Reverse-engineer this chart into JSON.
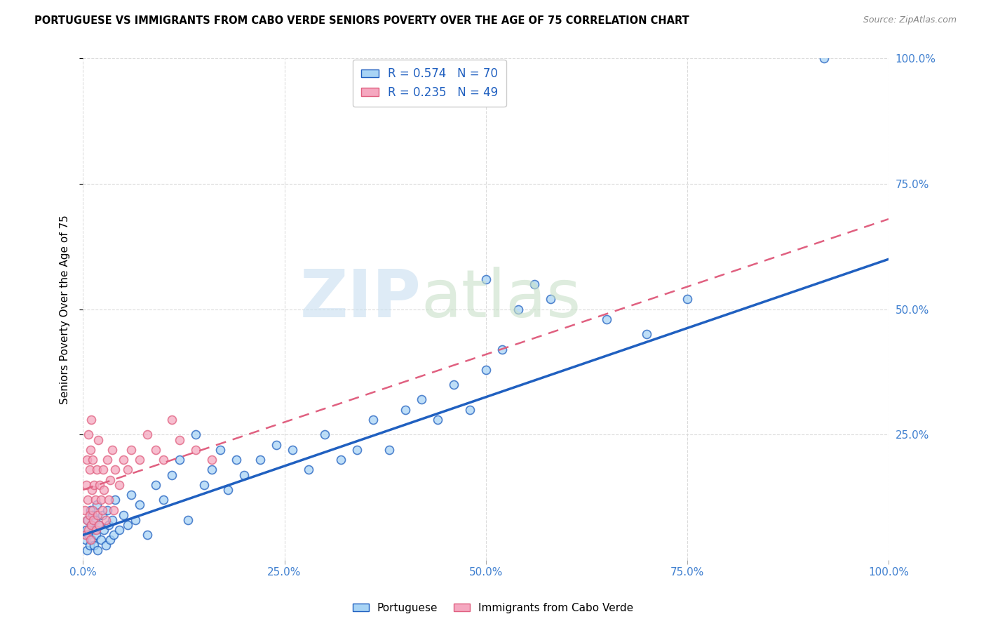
{
  "title": "PORTUGUESE VS IMMIGRANTS FROM CABO VERDE SENIORS POVERTY OVER THE AGE OF 75 CORRELATION CHART",
  "source": "Source: ZipAtlas.com",
  "ylabel": "Seniors Poverty Over the Age of 75",
  "xlim": [
    0,
    1.0
  ],
  "ylim": [
    0,
    1.0
  ],
  "xtick_labels": [
    "0.0%",
    "25.0%",
    "50.0%",
    "75.0%",
    "100.0%"
  ],
  "xtick_vals": [
    0,
    0.25,
    0.5,
    0.75,
    1.0
  ],
  "right_ytick_labels": [
    "25.0%",
    "50.0%",
    "75.0%",
    "100.0%"
  ],
  "right_ytick_vals": [
    0.25,
    0.5,
    0.75,
    1.0
  ],
  "portuguese_R": 0.574,
  "portuguese_N": 70,
  "cabo_verde_R": 0.235,
  "cabo_verde_N": 49,
  "portuguese_color": "#A8D4F5",
  "cabo_verde_color": "#F5A8C0",
  "portuguese_line_color": "#2060C0",
  "cabo_verde_line_color": "#E06080",
  "legend_text_color": "#2060C0",
  "axis_color": "#4080D0",
  "background_color": "#FFFFFF",
  "grid_color": "#D8D8D8",
  "blue_line_x0": 0.0,
  "blue_line_y0": 0.05,
  "blue_line_x1": 1.0,
  "blue_line_y1": 0.6,
  "pink_line_x0": 0.0,
  "pink_line_y0": 0.14,
  "pink_line_x1": 1.0,
  "pink_line_y1": 0.68,
  "portuguese_x": [
    0.003,
    0.004,
    0.005,
    0.006,
    0.007,
    0.008,
    0.009,
    0.01,
    0.011,
    0.012,
    0.013,
    0.014,
    0.015,
    0.016,
    0.017,
    0.018,
    0.02,
    0.022,
    0.024,
    0.026,
    0.028,
    0.03,
    0.032,
    0.034,
    0.036,
    0.038,
    0.04,
    0.045,
    0.05,
    0.055,
    0.06,
    0.065,
    0.07,
    0.08,
    0.09,
    0.1,
    0.11,
    0.12,
    0.13,
    0.14,
    0.15,
    0.16,
    0.17,
    0.18,
    0.19,
    0.2,
    0.22,
    0.24,
    0.26,
    0.28,
    0.3,
    0.32,
    0.34,
    0.36,
    0.38,
    0.4,
    0.42,
    0.44,
    0.46,
    0.48,
    0.5,
    0.52,
    0.54,
    0.56,
    0.58,
    0.65,
    0.7,
    0.75,
    0.92,
    0.5
  ],
  "portuguese_y": [
    0.04,
    0.06,
    0.02,
    0.08,
    0.05,
    0.03,
    0.1,
    0.07,
    0.04,
    0.09,
    0.06,
    0.03,
    0.08,
    0.05,
    0.11,
    0.02,
    0.07,
    0.04,
    0.09,
    0.06,
    0.03,
    0.1,
    0.07,
    0.04,
    0.08,
    0.05,
    0.12,
    0.06,
    0.09,
    0.07,
    0.13,
    0.08,
    0.11,
    0.05,
    0.15,
    0.12,
    0.17,
    0.2,
    0.08,
    0.25,
    0.15,
    0.18,
    0.22,
    0.14,
    0.2,
    0.17,
    0.2,
    0.23,
    0.22,
    0.18,
    0.25,
    0.2,
    0.22,
    0.28,
    0.22,
    0.3,
    0.32,
    0.28,
    0.35,
    0.3,
    0.38,
    0.42,
    0.5,
    0.55,
    0.52,
    0.48,
    0.45,
    0.52,
    1.0,
    0.56
  ],
  "cabo_verde_x": [
    0.002,
    0.003,
    0.004,
    0.005,
    0.005,
    0.006,
    0.007,
    0.007,
    0.008,
    0.008,
    0.009,
    0.009,
    0.01,
    0.01,
    0.011,
    0.012,
    0.012,
    0.013,
    0.014,
    0.015,
    0.016,
    0.017,
    0.018,
    0.019,
    0.02,
    0.021,
    0.022,
    0.024,
    0.025,
    0.026,
    0.028,
    0.03,
    0.032,
    0.034,
    0.036,
    0.038,
    0.04,
    0.045,
    0.05,
    0.055,
    0.06,
    0.07,
    0.08,
    0.09,
    0.1,
    0.11,
    0.12,
    0.14,
    0.16
  ],
  "cabo_verde_y": [
    0.1,
    0.05,
    0.15,
    0.08,
    0.2,
    0.12,
    0.06,
    0.25,
    0.09,
    0.18,
    0.04,
    0.22,
    0.07,
    0.28,
    0.14,
    0.1,
    0.2,
    0.08,
    0.15,
    0.12,
    0.06,
    0.18,
    0.09,
    0.24,
    0.07,
    0.15,
    0.12,
    0.1,
    0.18,
    0.14,
    0.08,
    0.2,
    0.12,
    0.16,
    0.22,
    0.1,
    0.18,
    0.15,
    0.2,
    0.18,
    0.22,
    0.2,
    0.25,
    0.22,
    0.2,
    0.28,
    0.24,
    0.22,
    0.2
  ]
}
